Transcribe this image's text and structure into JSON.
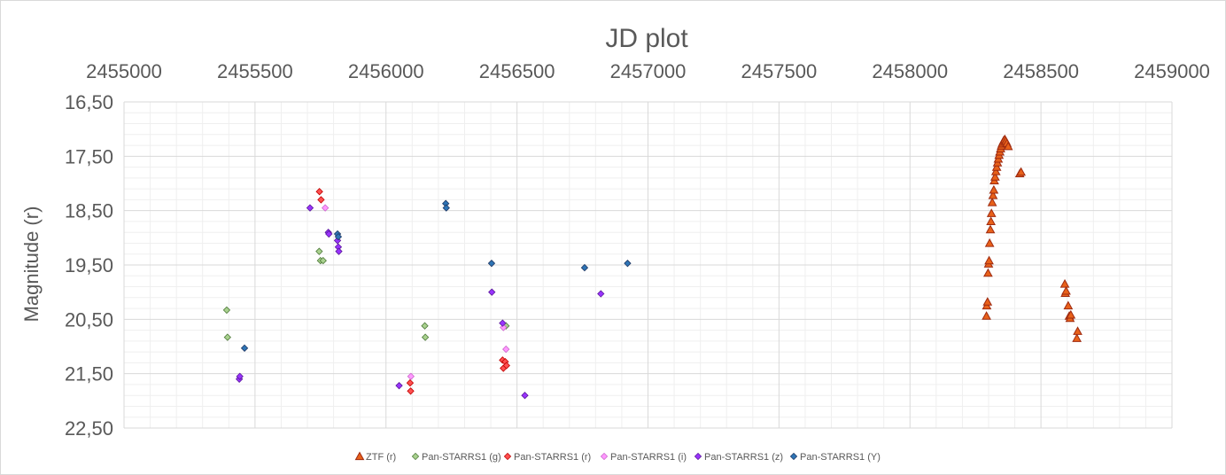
{
  "chart_data": {
    "type": "scatter",
    "title": "JD plot",
    "xlabel": "",
    "ylabel": "Magnitude (r)",
    "xlim": [
      2455000,
      2459000
    ],
    "ylim": [
      16.5,
      22.5
    ],
    "y_reversed": true,
    "x_axis_position": "top",
    "grid": true,
    "minor_grid": true,
    "legend_position": "bottom",
    "x_ticks": [
      "2455000",
      "2455500",
      "2456000",
      "2456500",
      "2457000",
      "2457500",
      "2458000",
      "2458500",
      "2459000"
    ],
    "y_ticks": [
      "16,50",
      "17,50",
      "18,50",
      "19,50",
      "20,50",
      "21,50",
      "22,50"
    ],
    "series": [
      {
        "name": "ZTF (r)",
        "marker": "triangle",
        "color": "#E8611A",
        "stroke": "#9E2A10",
        "points": [
          [
            2458292,
            20.44
          ],
          [
            2458293,
            20.25
          ],
          [
            2458296,
            20.18
          ],
          [
            2458298,
            19.65
          ],
          [
            2458300,
            19.48
          ],
          [
            2458302,
            19.42
          ],
          [
            2458304,
            19.1
          ],
          [
            2458307,
            18.85
          ],
          [
            2458309,
            18.7
          ],
          [
            2458311,
            18.55
          ],
          [
            2458314,
            18.35
          ],
          [
            2458317,
            18.22
          ],
          [
            2458320,
            18.12
          ],
          [
            2458322,
            17.95
          ],
          [
            2458325,
            17.88
          ],
          [
            2458328,
            17.78
          ],
          [
            2458331,
            17.7
          ],
          [
            2458334,
            17.62
          ],
          [
            2458337,
            17.55
          ],
          [
            2458340,
            17.48
          ],
          [
            2458343,
            17.42
          ],
          [
            2458346,
            17.36
          ],
          [
            2458349,
            17.31
          ],
          [
            2458352,
            17.27
          ],
          [
            2458355,
            17.24
          ],
          [
            2458358,
            17.21
          ],
          [
            2458362,
            17.19
          ],
          [
            2458366,
            17.22
          ],
          [
            2458370,
            17.26
          ],
          [
            2458375,
            17.32
          ],
          [
            2458419,
            17.82
          ],
          [
            2458424,
            17.79
          ],
          [
            2458591,
            19.85
          ],
          [
            2458593,
            20.02
          ],
          [
            2458596,
            19.98
          ],
          [
            2458604,
            20.25
          ],
          [
            2458608,
            20.44
          ],
          [
            2458611,
            20.48
          ],
          [
            2458614,
            20.42
          ],
          [
            2458637,
            20.85
          ],
          [
            2458640,
            20.72
          ]
        ]
      },
      {
        "name": "Pan-STARRS1 (g)",
        "marker": "diamond",
        "color": "#A9D18E",
        "stroke": "#4E7A3A",
        "points": [
          [
            2455392,
            20.33
          ],
          [
            2455395,
            20.83
          ],
          [
            2455745,
            19.25
          ],
          [
            2455750,
            19.42
          ],
          [
            2455760,
            19.42
          ],
          [
            2456148,
            20.62
          ],
          [
            2456150,
            20.83
          ],
          [
            2456458,
            20.62
          ]
        ]
      },
      {
        "name": "Pan-STARRS1 (r)",
        "marker": "diamond",
        "color": "#FF5050",
        "stroke": "#C00000",
        "points": [
          [
            2455746,
            18.15
          ],
          [
            2455752,
            18.3
          ],
          [
            2456092,
            21.67
          ],
          [
            2456094,
            21.82
          ],
          [
            2456445,
            21.25
          ],
          [
            2456448,
            21.4
          ],
          [
            2456455,
            21.28
          ],
          [
            2456460,
            21.35
          ]
        ]
      },
      {
        "name": "Pan-STARRS1 (i)",
        "marker": "diamond",
        "color": "#FF99FF",
        "stroke": "#CC66CC",
        "points": [
          [
            2455768,
            18.45
          ],
          [
            2456095,
            21.55
          ],
          [
            2456448,
            20.65
          ],
          [
            2456458,
            21.05
          ]
        ]
      },
      {
        "name": "Pan-STARRS1 (z)",
        "marker": "diamond",
        "color": "#9933FF",
        "stroke": "#5B1A99",
        "points": [
          [
            2455440,
            21.6
          ],
          [
            2455442,
            21.55
          ],
          [
            2455710,
            18.45
          ],
          [
            2455780,
            18.9
          ],
          [
            2455782,
            18.93
          ],
          [
            2455815,
            19.05
          ],
          [
            2455818,
            19.17
          ],
          [
            2455820,
            19.25
          ],
          [
            2456050,
            21.72
          ],
          [
            2456404,
            20.0
          ],
          [
            2456445,
            20.57
          ],
          [
            2456530,
            21.9
          ],
          [
            2456820,
            20.03
          ]
        ]
      },
      {
        "name": "Pan-STARRS1 (Y)",
        "marker": "diamond",
        "color": "#2E75B6",
        "stroke": "#1F3864",
        "points": [
          [
            2455460,
            21.03
          ],
          [
            2455815,
            18.93
          ],
          [
            2455818,
            18.98
          ],
          [
            2456228,
            18.37
          ],
          [
            2456230,
            18.45
          ],
          [
            2456403,
            19.47
          ],
          [
            2456758,
            19.55
          ],
          [
            2456922,
            19.47
          ]
        ]
      }
    ]
  }
}
